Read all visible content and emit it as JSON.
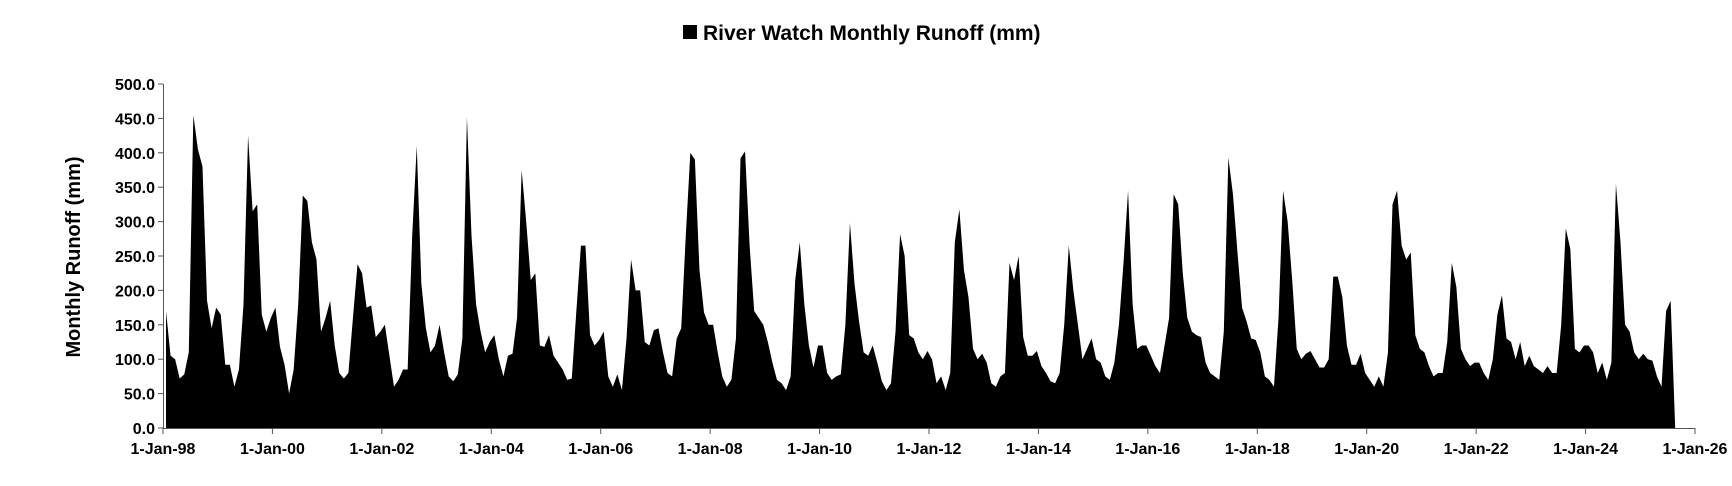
{
  "chart_data": {
    "type": "area",
    "legend_label": "River Watch Monthly Runoff (mm)",
    "legend_position": "top-center",
    "ylabel": "Monthly Runoff (mm)",
    "xlabel": "",
    "grid": false,
    "ylim": [
      0,
      500
    ],
    "y_ticks": [
      "0.0",
      "50.0",
      "100.0",
      "150.0",
      "200.0",
      "250.0",
      "300.0",
      "350.0",
      "400.0",
      "450.0",
      "500.0"
    ],
    "x_ticks": [
      "1-Jan-98",
      "1-Jan-00",
      "1-Jan-02",
      "1-Jan-04",
      "1-Jan-06",
      "1-Jan-08",
      "1-Jan-10",
      "1-Jan-12",
      "1-Jan-14",
      "1-Jan-16",
      "1-Jan-18",
      "1-Jan-20",
      "1-Jan-22",
      "1-Jan-24",
      "1-Jan-26"
    ],
    "x_start": "1998-01",
    "series_color": "#000000",
    "series": [
      {
        "name": "River Watch Monthly Runoff (mm)",
        "values": [
          170,
          105,
          100,
          72,
          78,
          110,
          455,
          405,
          380,
          185,
          145,
          175,
          165,
          92,
          92,
          60,
          85,
          180,
          425,
          315,
          325,
          165,
          140,
          160,
          175,
          118,
          92,
          50,
          85,
          180,
          338,
          330,
          270,
          245,
          140,
          160,
          185,
          120,
          80,
          72,
          80,
          160,
          238,
          225,
          175,
          178,
          132,
          140,
          150,
          105,
          60,
          70,
          85,
          85,
          280,
          410,
          210,
          145,
          110,
          120,
          150,
          110,
          75,
          68,
          78,
          130,
          452,
          280,
          180,
          140,
          110,
          125,
          135,
          100,
          75,
          105,
          108,
          160,
          375,
          300,
          215,
          225,
          120,
          118,
          135,
          105,
          95,
          85,
          70,
          72,
          170,
          265,
          265,
          135,
          120,
          128,
          140,
          75,
          60,
          78,
          55,
          130,
          245,
          200,
          200,
          125,
          120,
          142,
          145,
          110,
          80,
          75,
          130,
          145,
          280,
          400,
          390,
          230,
          168,
          150,
          150,
          110,
          75,
          60,
          70,
          130,
          392,
          402,
          265,
          170,
          160,
          150,
          125,
          95,
          70,
          65,
          55,
          75,
          215,
          270,
          180,
          120,
          88,
          120,
          120,
          80,
          70,
          75,
          78,
          150,
          298,
          210,
          155,
          110,
          105,
          120,
          95,
          68,
          55,
          65,
          140,
          282,
          250,
          135,
          130,
          110,
          100,
          112,
          100,
          65,
          75,
          55,
          80,
          270,
          318,
          230,
          190,
          115,
          100,
          108,
          95,
          65,
          60,
          75,
          80,
          240,
          215,
          250,
          132,
          105,
          105,
          112,
          90,
          80,
          68,
          65,
          80,
          150,
          265,
          200,
          150,
          100,
          115,
          130,
          100,
          95,
          75,
          70,
          95,
          150,
          240,
          345,
          180,
          115,
          120,
          120,
          105,
          90,
          80,
          120,
          160,
          340,
          325,
          225,
          160,
          140,
          135,
          132,
          95,
          80,
          75,
          70,
          140,
          393,
          340,
          255,
          175,
          155,
          130,
          128,
          110,
          75,
          70,
          60,
          160,
          345,
          300,
          215,
          115,
          100,
          108,
          112,
          100,
          88,
          88,
          100,
          220,
          220,
          190,
          120,
          92,
          92,
          108,
          80,
          70,
          60,
          75,
          60,
          110,
          325,
          345,
          265,
          245,
          255,
          135,
          115,
          110,
          90,
          75,
          80,
          80,
          125,
          240,
          205,
          115,
          100,
          90,
          95,
          95,
          80,
          70,
          100,
          165,
          193,
          130,
          125,
          100,
          125,
          90,
          105,
          90,
          85,
          80,
          90,
          80,
          80,
          150,
          290,
          260,
          115,
          110,
          120,
          120,
          110,
          80,
          95,
          70,
          95,
          355,
          270,
          150,
          140,
          110,
          100,
          108,
          100,
          98,
          75,
          60,
          170,
          185,
          0
        ]
      }
    ]
  }
}
